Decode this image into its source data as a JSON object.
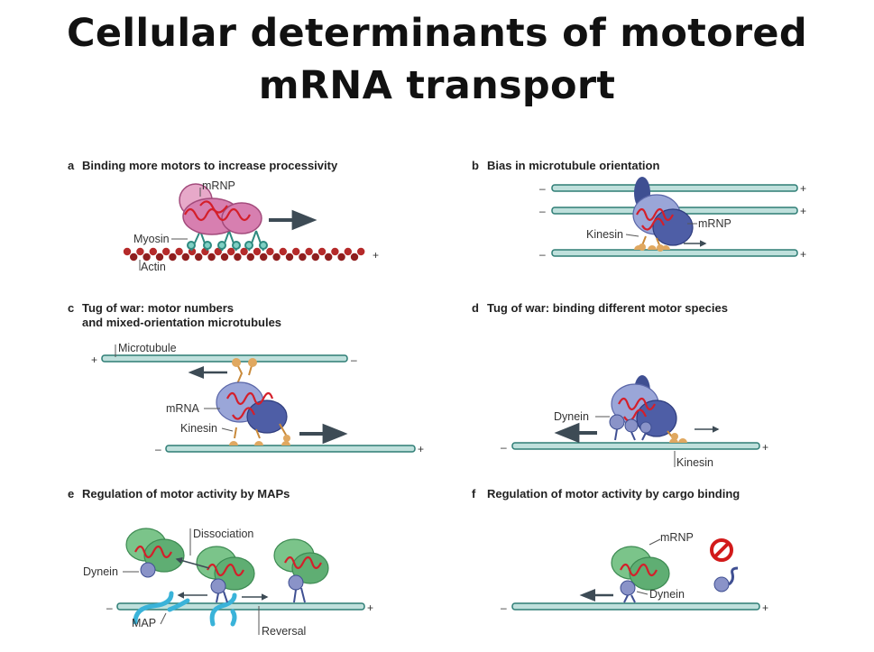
{
  "title": {
    "line1": "Cellular determinants of motored",
    "line2": "mRNA transport"
  },
  "panels": {
    "a": {
      "letter": "a",
      "heading": "Binding more motors to increase processivity",
      "labels": {
        "mrnp": "mRNP",
        "myosin": "Myosin",
        "actin": "Actin"
      }
    },
    "b": {
      "letter": "b",
      "heading": "Bias in microtubule orientation",
      "labels": {
        "kinesin": "Kinesin",
        "mrnp": "mRNP"
      }
    },
    "c": {
      "letter": "c",
      "heading_line1": "Tug of war: motor numbers",
      "heading_line2": "and mixed-orientation microtubules",
      "labels": {
        "microtubule": "Microtubule",
        "mrna": "mRNA",
        "kinesin": "Kinesin"
      }
    },
    "d": {
      "letter": "d",
      "heading": "Tug of war: binding different motor species",
      "labels": {
        "dynein": "Dynein",
        "kinesin": "Kinesin"
      }
    },
    "e": {
      "letter": "e",
      "heading": "Regulation of motor activity by MAPs",
      "labels": {
        "dissociation": "Dissociation",
        "dynein": "Dynein",
        "map": "MAP",
        "reversal": "Reversal"
      }
    },
    "f": {
      "letter": "f",
      "heading": "Regulation of motor activity by cargo binding",
      "labels": {
        "mrnp": "mRNP",
        "dynein": "Dynein"
      }
    }
  },
  "polarity": {
    "plus": "+",
    "minus": "–"
  },
  "colors": {
    "microtubule_fill": "#bfe0dc",
    "microtubule_stroke": "#2e7d75",
    "actin": "#b52a2a",
    "mrnp_pink": "#d77fb0",
    "mrnp_green": "#7bc48a",
    "motor_blue": "#6b78b8",
    "kinesin_orange": "#e0a860",
    "rna_red": "#d41f2a",
    "arrow_dark": "#3d4b55",
    "map_cyan": "#3ab3d9",
    "prohibit_red": "#d21a1a"
  }
}
